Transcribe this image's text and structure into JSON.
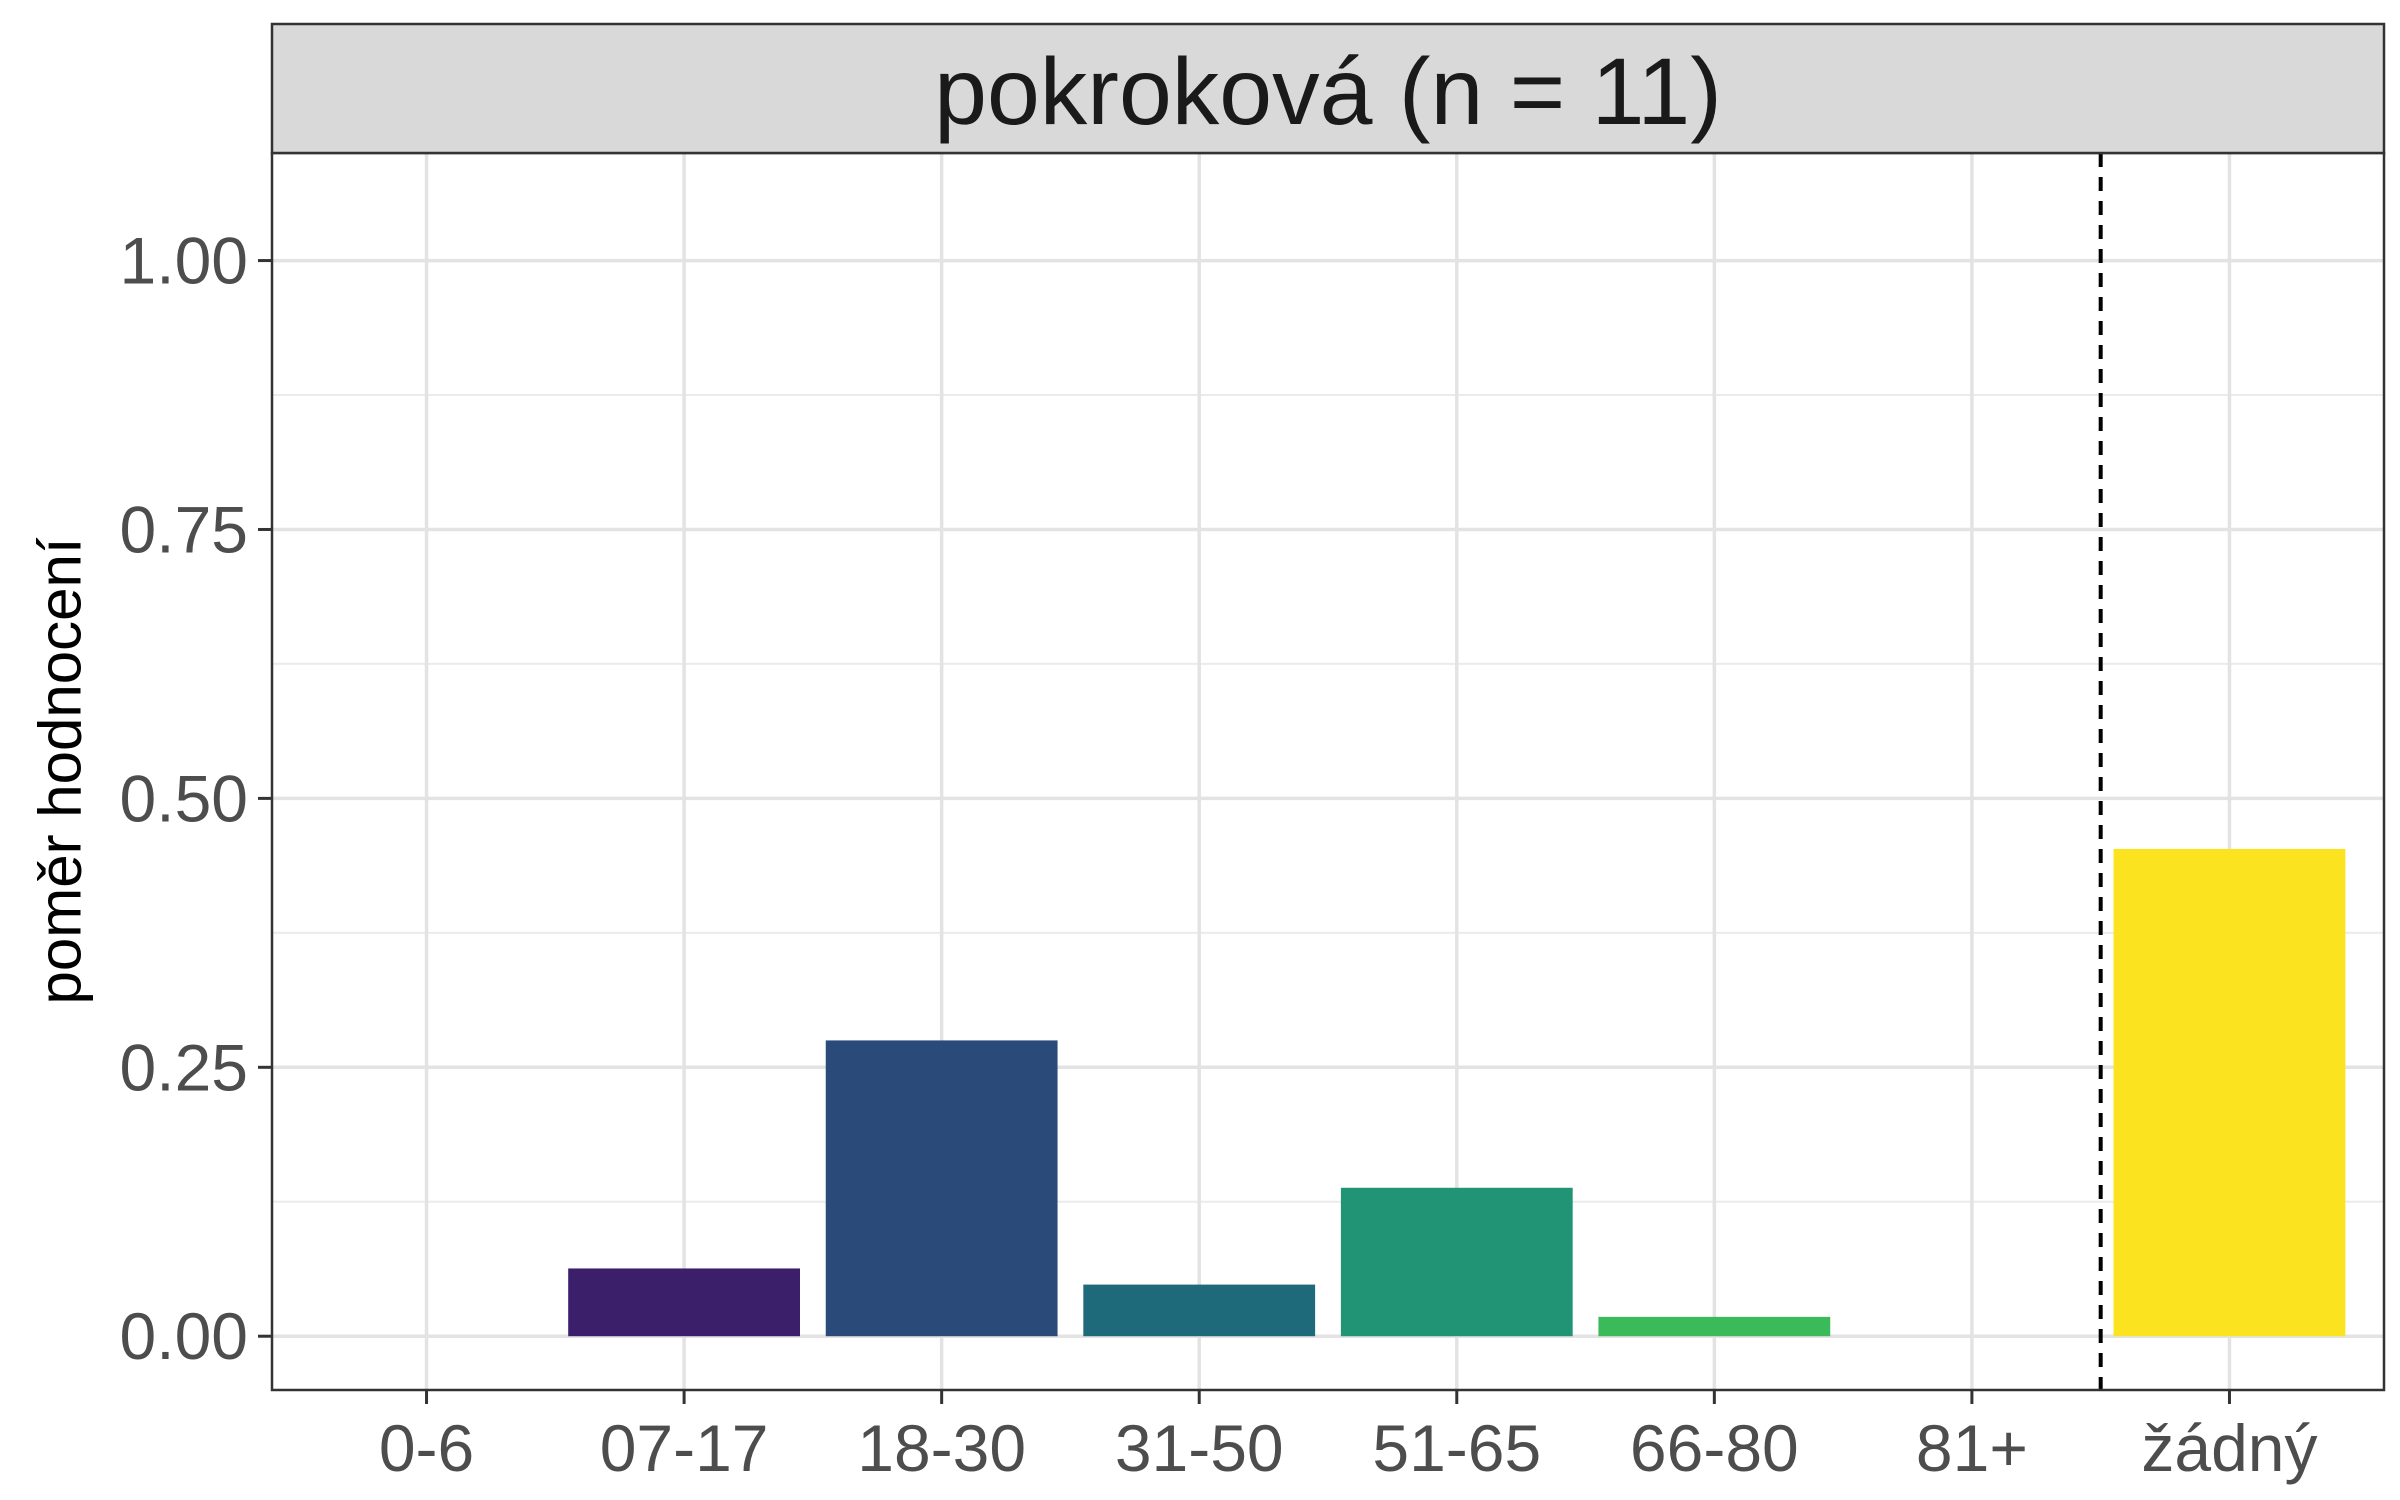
{
  "chart_data": {
    "type": "bar",
    "title": "pokroková (n = 11)",
    "xlabel": "",
    "ylabel": "poměr hodnocení",
    "categories": [
      "0-6",
      "07-17",
      "18-30",
      "31-50",
      "51-65",
      "66-80",
      "81+",
      "žádný"
    ],
    "values": [
      0,
      0.063,
      0.275,
      0.048,
      0.138,
      0.018,
      0,
      0.453
    ],
    "bar_colors": [
      "#440154",
      "#3b1f6b",
      "#2a4a7a",
      "#1f6a7a",
      "#219476",
      "#3aba58",
      "#7ad151",
      "#fce31f"
    ],
    "ylim": [
      -0.05,
      1.1
    ],
    "yticks": [
      0,
      0.25,
      0.5,
      0.75,
      1.0
    ],
    "ytick_labels": [
      "0.00",
      "0.25",
      "0.50",
      "0.75",
      "1.00"
    ],
    "reference_line": {
      "between": [
        "81+",
        "žádný"
      ],
      "style": "dashed"
    },
    "grid": true,
    "legend": "none"
  }
}
